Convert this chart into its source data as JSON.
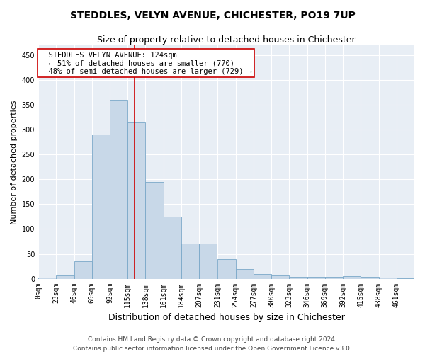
{
  "title": "STEDDLES, VELYN AVENUE, CHICHESTER, PO19 7UP",
  "subtitle": "Size of property relative to detached houses in Chichester",
  "xlabel": "Distribution of detached houses by size in Chichester",
  "ylabel": "Number of detached properties",
  "bin_labels": [
    "0sqm",
    "23sqm",
    "46sqm",
    "69sqm",
    "92sqm",
    "115sqm",
    "138sqm",
    "161sqm",
    "184sqm",
    "207sqm",
    "231sqm",
    "254sqm",
    "277sqm",
    "300sqm",
    "323sqm",
    "346sqm",
    "369sqm",
    "392sqm",
    "415sqm",
    "438sqm",
    "461sqm"
  ],
  "bin_edges": [
    0,
    23,
    46,
    69,
    92,
    115,
    138,
    161,
    184,
    207,
    231,
    254,
    277,
    300,
    323,
    346,
    369,
    392,
    415,
    438,
    461,
    484
  ],
  "bar_heights": [
    2,
    7,
    35,
    290,
    360,
    315,
    195,
    125,
    70,
    70,
    40,
    20,
    10,
    7,
    4,
    4,
    4,
    5,
    3,
    2,
    1
  ],
  "bar_color": "#c8d8e8",
  "bar_edge_color": "#7aa8c8",
  "red_line_x": 124,
  "red_line_color": "#cc0000",
  "annotation_text": "  STEDDLES VELYN AVENUE: 124sqm\n  ← 51% of detached houses are smaller (770)\n  48% of semi-detached houses are larger (729) →",
  "annotation_box_color": "#ffffff",
  "annotation_box_edge_color": "#cc0000",
  "ylim": [
    0,
    470
  ],
  "yticks": [
    0,
    50,
    100,
    150,
    200,
    250,
    300,
    350,
    400,
    450
  ],
  "footer_line1": "Contains HM Land Registry data © Crown copyright and database right 2024.",
  "footer_line2": "Contains public sector information licensed under the Open Government Licence v3.0.",
  "background_color": "#e8eef5",
  "title_fontsize": 10,
  "subtitle_fontsize": 9,
  "xlabel_fontsize": 9,
  "ylabel_fontsize": 8,
  "tick_fontsize": 7,
  "annotation_fontsize": 7.5,
  "footer_fontsize": 6.5
}
